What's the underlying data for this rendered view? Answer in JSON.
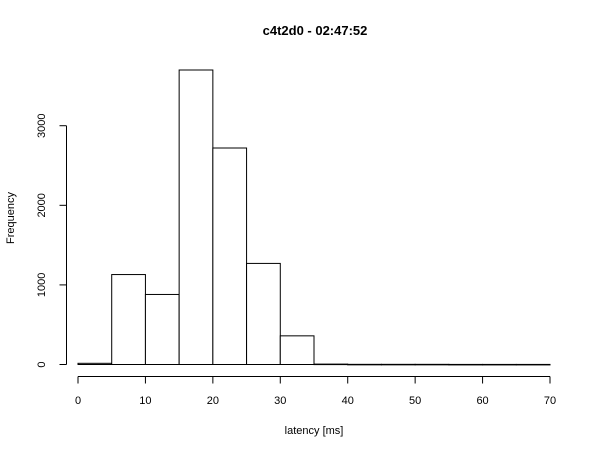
{
  "chart_data": {
    "type": "bar",
    "title": "c4t2d0 - 02:47:52",
    "xlabel": "latency [ms]",
    "ylabel": "Frequency",
    "bins": [
      {
        "x0": 0,
        "x1": 5,
        "count": 15
      },
      {
        "x0": 5,
        "x1": 10,
        "count": 1130
      },
      {
        "x0": 10,
        "x1": 15,
        "count": 880
      },
      {
        "x0": 15,
        "x1": 20,
        "count": 3700
      },
      {
        "x0": 20,
        "x1": 25,
        "count": 2720
      },
      {
        "x0": 25,
        "x1": 30,
        "count": 1270
      },
      {
        "x0": 30,
        "x1": 35,
        "count": 360
      },
      {
        "x0": 35,
        "x1": 40,
        "count": 5
      },
      {
        "x0": 40,
        "x1": 45,
        "count": 2
      },
      {
        "x0": 45,
        "x1": 50,
        "count": 2
      },
      {
        "x0": 50,
        "x1": 55,
        "count": 2
      },
      {
        "x0": 55,
        "x1": 60,
        "count": 1
      },
      {
        "x0": 60,
        "x1": 65,
        "count": 1
      },
      {
        "x0": 65,
        "x1": 70,
        "count": 1
      }
    ],
    "xlim": [
      0,
      70
    ],
    "ylim": [
      0,
      3700
    ],
    "xticks": [
      0,
      10,
      20,
      30,
      40,
      50,
      60,
      70
    ],
    "yticks": [
      0,
      1000,
      2000,
      3000
    ],
    "grid": false,
    "colors": {
      "bar_fill": "#ffffff",
      "bar_stroke": "#000000"
    }
  }
}
